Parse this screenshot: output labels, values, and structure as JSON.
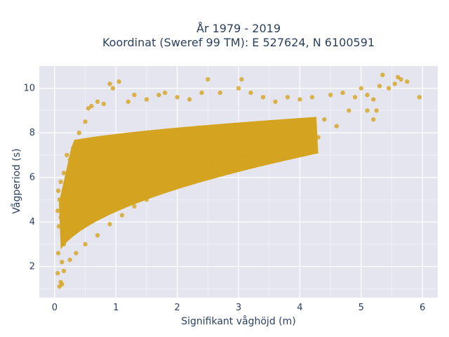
{
  "chart_data": {
    "type": "scatter",
    "title_lines": [
      "År 1979 - 2019",
      "Koordinat (Sweref 99 TM): E 527624, N 6100591"
    ],
    "xlabel": "Signifikant våghöjd (m)",
    "ylabel": "Vågperiod (s)",
    "xlim": [
      -0.25,
      6.25
    ],
    "ylim": [
      0.6,
      11.0
    ],
    "x_ticks": [
      0,
      1,
      2,
      3,
      4,
      5,
      6
    ],
    "y_ticks": [
      2,
      4,
      6,
      8,
      10
    ],
    "grid": true,
    "legend": "none",
    "colors": {
      "marker": "#d4a421",
      "plot_bg": "#e5e5ef",
      "grid": "#ffffff",
      "text": "#2a3f5f"
    },
    "series": [
      {
        "points": [
          [
            0.05,
            1.7
          ],
          [
            0.08,
            1.1
          ],
          [
            0.1,
            1.3
          ],
          [
            0.12,
            2.2
          ],
          [
            0.15,
            3.0
          ],
          [
            0.2,
            3.5
          ],
          [
            0.1,
            4.2
          ],
          [
            0.08,
            5.0
          ],
          [
            0.1,
            5.8
          ],
          [
            0.15,
            6.2
          ],
          [
            0.2,
            7.0
          ],
          [
            0.25,
            6.8
          ],
          [
            0.3,
            7.3
          ],
          [
            0.35,
            7.6
          ],
          [
            0.4,
            8.0
          ],
          [
            0.5,
            8.5
          ],
          [
            0.55,
            9.1
          ],
          [
            0.6,
            9.2
          ],
          [
            0.7,
            9.4
          ],
          [
            0.8,
            9.3
          ],
          [
            0.9,
            10.2
          ],
          [
            0.95,
            10.0
          ],
          [
            1.05,
            10.3
          ],
          [
            1.2,
            9.4
          ],
          [
            1.3,
            9.7
          ],
          [
            1.5,
            9.5
          ],
          [
            1.7,
            9.7
          ],
          [
            1.8,
            9.8
          ],
          [
            2.0,
            9.6
          ],
          [
            2.2,
            9.5
          ],
          [
            2.4,
            9.8
          ],
          [
            2.5,
            10.4
          ],
          [
            2.7,
            9.8
          ],
          [
            3.0,
            10.0
          ],
          [
            3.05,
            10.4
          ],
          [
            3.2,
            9.8
          ],
          [
            3.4,
            9.6
          ],
          [
            3.6,
            9.4
          ],
          [
            3.8,
            9.6
          ],
          [
            4.0,
            9.5
          ],
          [
            4.2,
            9.6
          ],
          [
            4.5,
            9.7
          ],
          [
            4.7,
            9.8
          ],
          [
            4.9,
            9.6
          ],
          [
            5.0,
            10.0
          ],
          [
            5.1,
            9.7
          ],
          [
            5.2,
            9.5
          ],
          [
            5.3,
            10.1
          ],
          [
            5.35,
            10.6
          ],
          [
            5.45,
            10.0
          ],
          [
            5.55,
            10.2
          ],
          [
            5.6,
            10.5
          ],
          [
            5.65,
            10.4
          ],
          [
            5.75,
            10.3
          ],
          [
            5.95,
            9.6
          ],
          [
            5.25,
            9.0
          ],
          [
            5.2,
            8.6
          ],
          [
            5.1,
            9.0
          ],
          [
            4.8,
            9.0
          ],
          [
            4.6,
            8.3
          ],
          [
            4.4,
            8.6
          ],
          [
            4.3,
            7.8
          ],
          [
            4.2,
            8.2
          ],
          [
            4.1,
            7.9
          ],
          [
            4.0,
            7.8
          ],
          [
            3.9,
            7.8
          ],
          [
            3.7,
            7.7
          ],
          [
            3.5,
            7.5
          ],
          [
            3.3,
            7.3
          ],
          [
            3.1,
            7.1
          ],
          [
            2.9,
            6.9
          ],
          [
            2.7,
            6.7
          ],
          [
            2.5,
            6.5
          ],
          [
            2.3,
            6.2
          ],
          [
            2.1,
            5.9
          ],
          [
            1.9,
            5.6
          ],
          [
            1.7,
            5.3
          ],
          [
            1.5,
            5.0
          ],
          [
            1.3,
            4.7
          ],
          [
            1.1,
            4.3
          ],
          [
            0.9,
            3.9
          ],
          [
            0.7,
            3.4
          ],
          [
            0.5,
            3.0
          ],
          [
            0.35,
            2.6
          ],
          [
            0.25,
            2.3
          ],
          [
            0.15,
            1.8
          ],
          [
            0.12,
            1.2
          ],
          [
            0.06,
            2.6
          ],
          [
            0.07,
            3.8
          ],
          [
            0.05,
            4.5
          ],
          [
            0.06,
            5.4
          ]
        ]
      }
    ]
  }
}
